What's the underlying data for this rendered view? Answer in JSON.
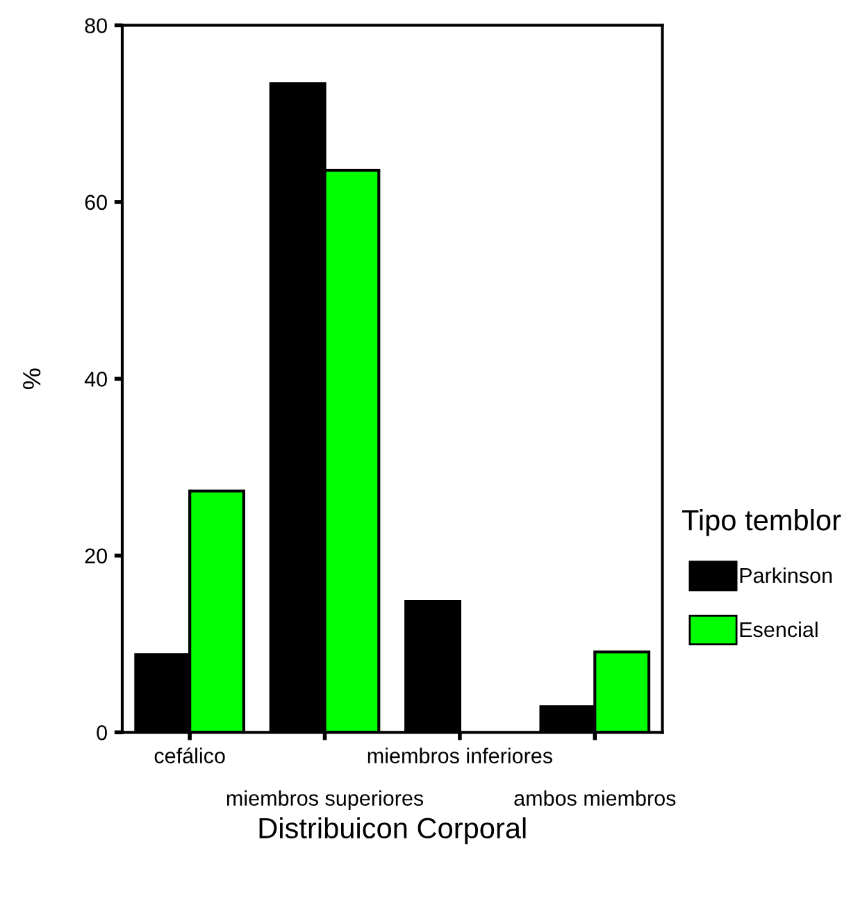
{
  "chart_data": {
    "type": "bar",
    "xlabel": "Distribuicon Corporal",
    "ylabel": "%",
    "legend_title": "Tipo temblor",
    "categories": [
      "cefálico",
      "miembros superiores",
      "miembros inferiores",
      "ambos miembros"
    ],
    "series": [
      {
        "name": "Parkinson",
        "color": "#000000",
        "values": [
          8.8,
          73.4,
          14.8,
          2.9
        ]
      },
      {
        "name": "Esencial",
        "color": "#00ff00",
        "values": [
          27.3,
          63.6,
          0,
          9.1
        ]
      }
    ],
    "ylim": [
      0,
      80
    ],
    "yticks": [
      0,
      20,
      40,
      60,
      80
    ],
    "grid": false,
    "legend": "right"
  }
}
